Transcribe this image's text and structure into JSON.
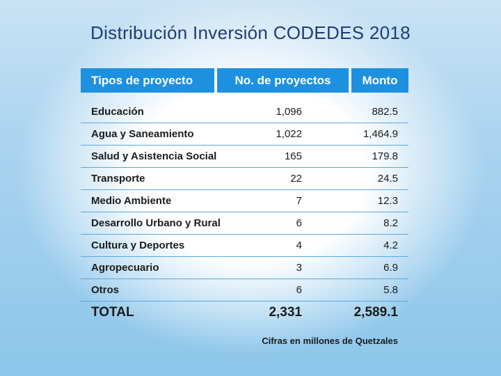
{
  "slide": {
    "title": "Distribución Inversión CODEDES 2018",
    "footnote": "Cifras en millones de Quetzales"
  },
  "table": {
    "headers": [
      "Tipos de proyecto",
      "No. de proyectos",
      "Monto"
    ],
    "rows": [
      {
        "tipo": "Educación",
        "proyectos": "1,096",
        "monto": "882.5"
      },
      {
        "tipo": "Agua y Saneamiento",
        "proyectos": "1,022",
        "monto": "1,464.9"
      },
      {
        "tipo": "Salud y Asistencia Social",
        "proyectos": "165",
        "monto": "179.8"
      },
      {
        "tipo": "Transporte",
        "proyectos": "22",
        "monto": "24.5"
      },
      {
        "tipo": "Medio Ambiente",
        "proyectos": "7",
        "monto": "12.3"
      },
      {
        "tipo": "Desarrollo Urbano y Rural",
        "proyectos": "6",
        "monto": "8.2"
      },
      {
        "tipo": "Cultura y Deportes",
        "proyectos": "4",
        "monto": "4.2"
      },
      {
        "tipo": "Agropecuario",
        "proyectos": "3",
        "monto": "6.9"
      },
      {
        "tipo": "Otros",
        "proyectos": "6",
        "monto": "5.8"
      }
    ],
    "total": {
      "label": "TOTAL",
      "proyectos": "2,331",
      "monto": "2,589.1"
    }
  },
  "colors": {
    "header_bg": "#1e90e0",
    "title": "#1f3d73",
    "row_divider": "#5aa8e0"
  }
}
